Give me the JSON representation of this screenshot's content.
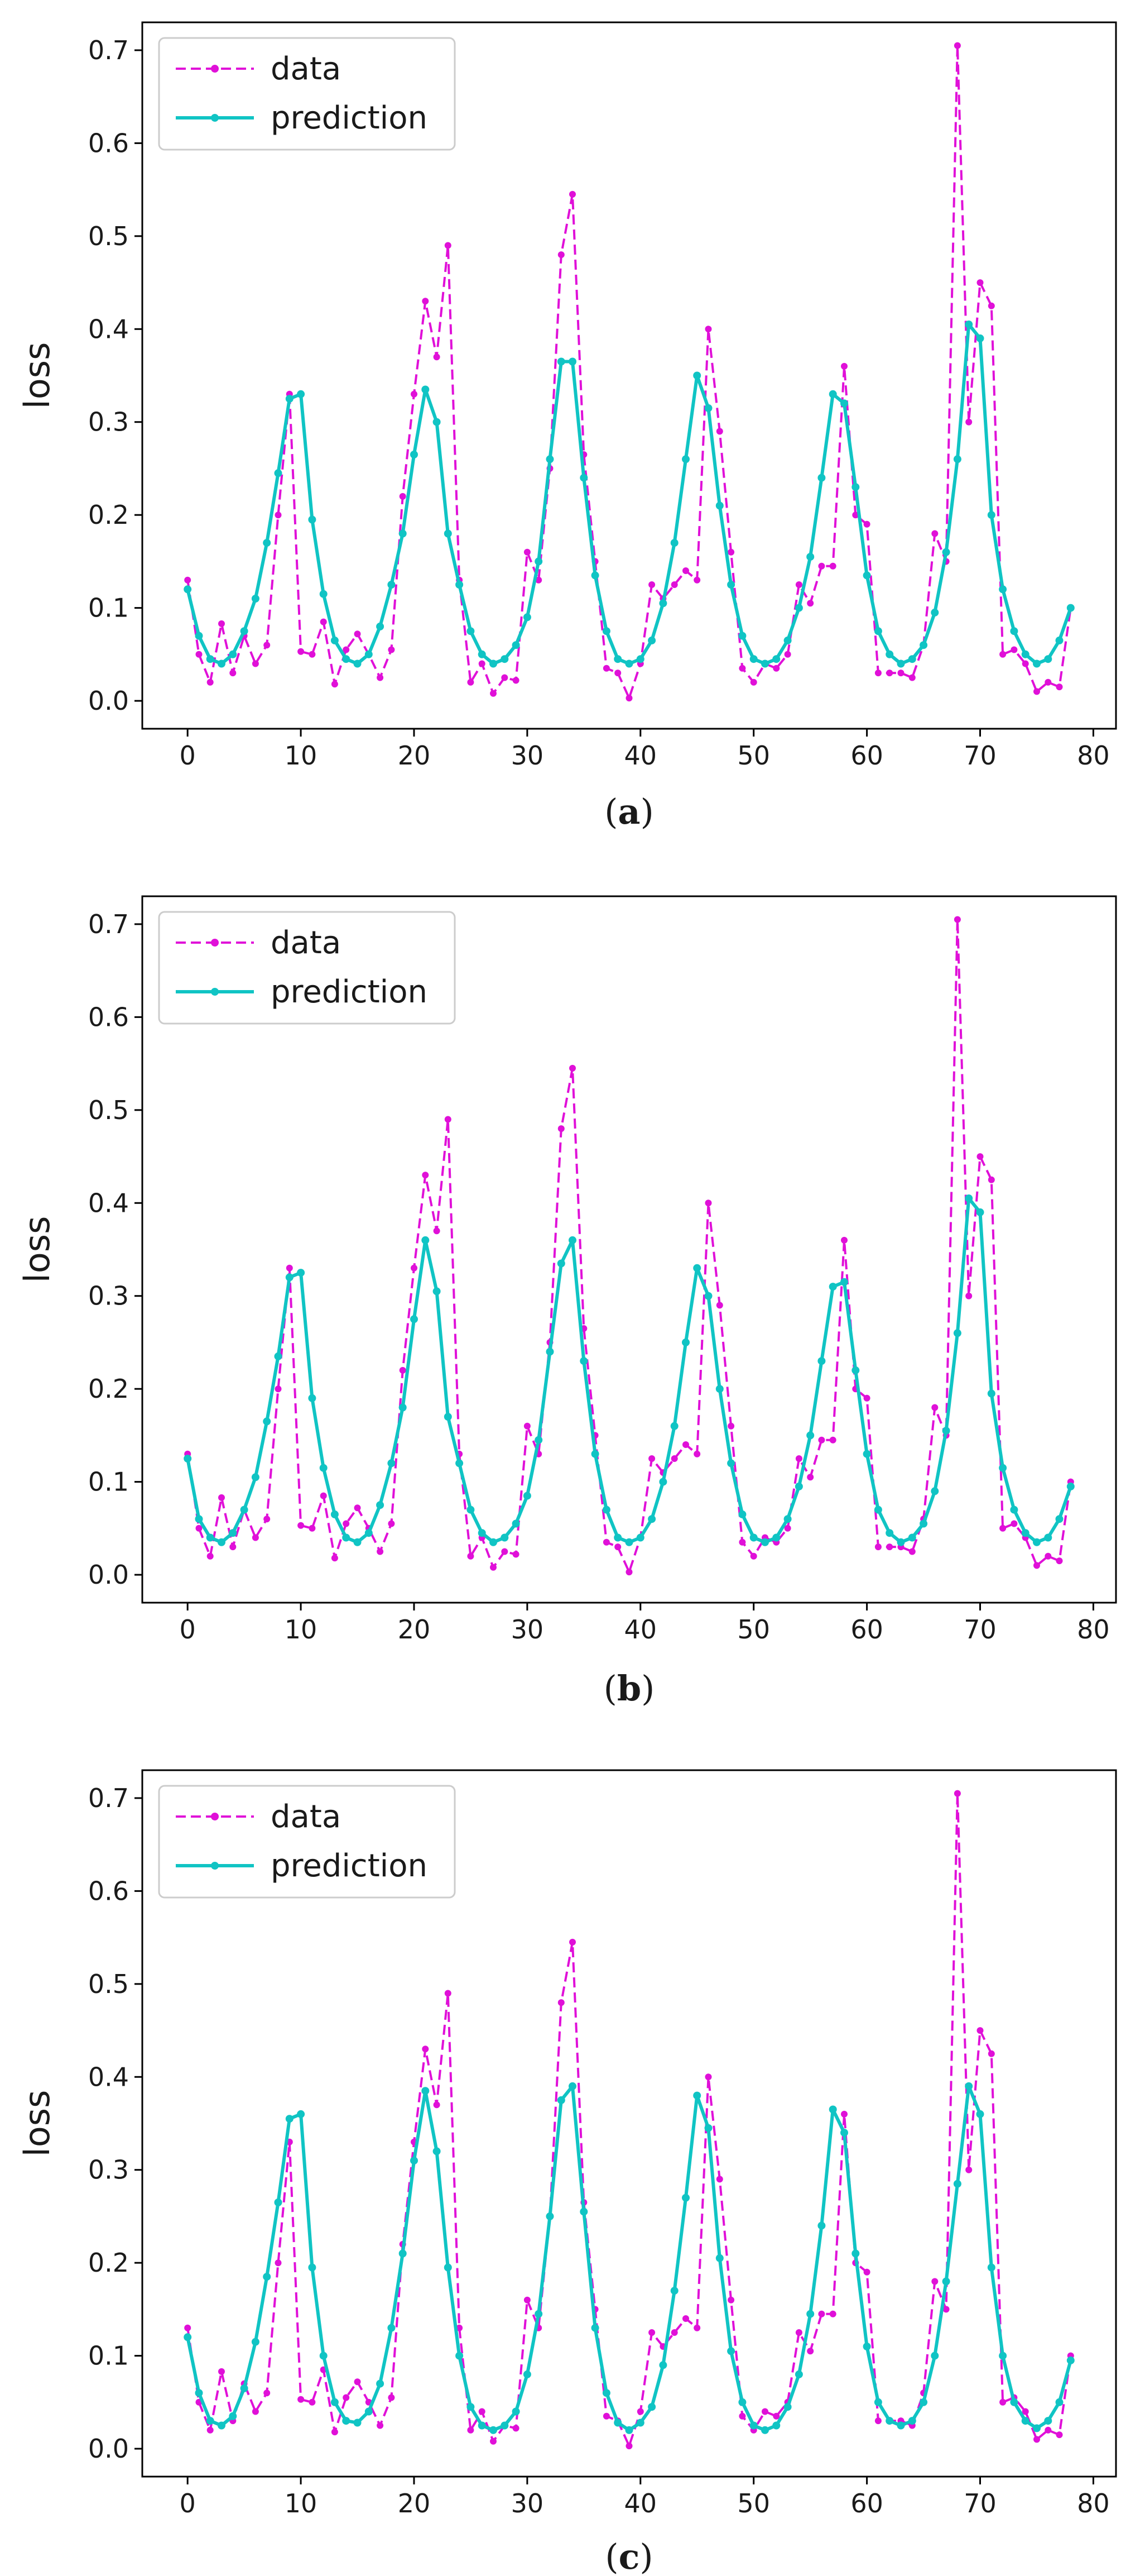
{
  "chart_data": [
    {
      "type": "line",
      "panel": "a",
      "caption": "a",
      "ylabel": "loss",
      "xlabel": "",
      "xlim": [
        -4,
        82
      ],
      "ylim": [
        -0.03,
        0.73
      ],
      "xticks": [
        0,
        10,
        20,
        30,
        40,
        50,
        60,
        70,
        80
      ],
      "yticks": [
        0.0,
        0.1,
        0.2,
        0.3,
        0.4,
        0.5,
        0.6,
        0.7
      ],
      "legend": {
        "placement": "top-left",
        "entries": [
          "data",
          "prediction"
        ]
      },
      "grid": false,
      "series": [
        {
          "name": "data",
          "color": "#e010d8",
          "style": "dashed",
          "values": [
            0.13,
            0.05,
            0.02,
            0.083,
            0.03,
            0.07,
            0.04,
            0.06,
            0.2,
            0.33,
            0.053,
            0.05,
            0.085,
            0.018,
            0.055,
            0.072,
            0.05,
            0.025,
            0.055,
            0.22,
            0.33,
            0.43,
            0.37,
            0.49,
            0.13,
            0.02,
            0.04,
            0.008,
            0.025,
            0.022,
            0.16,
            0.13,
            0.25,
            0.48,
            0.545,
            0.265,
            0.15,
            0.035,
            0.03,
            0.003,
            0.04,
            0.125,
            0.11,
            0.125,
            0.14,
            0.13,
            0.4,
            0.29,
            0.16,
            0.035,
            0.02,
            0.04,
            0.035,
            0.05,
            0.125,
            0.105,
            0.145,
            0.145,
            0.36,
            0.2,
            0.19,
            0.03,
            0.03,
            0.03,
            0.025,
            0.06,
            0.18,
            0.15,
            0.705,
            0.3,
            0.45,
            0.425,
            0.05,
            0.055,
            0.04,
            0.01,
            0.02,
            0.015,
            0.1
          ]
        },
        {
          "name": "prediction",
          "color": "#10c4c4",
          "style": "solid",
          "values": [
            0.12,
            0.07,
            0.045,
            0.04,
            0.05,
            0.075,
            0.11,
            0.17,
            0.245,
            0.325,
            0.33,
            0.195,
            0.115,
            0.065,
            0.045,
            0.04,
            0.05,
            0.08,
            0.125,
            0.18,
            0.265,
            0.335,
            0.3,
            0.18,
            0.125,
            0.075,
            0.05,
            0.04,
            0.045,
            0.06,
            0.09,
            0.15,
            0.26,
            0.365,
            0.365,
            0.24,
            0.135,
            0.075,
            0.045,
            0.04,
            0.045,
            0.065,
            0.105,
            0.17,
            0.26,
            0.35,
            0.315,
            0.21,
            0.125,
            0.07,
            0.045,
            0.04,
            0.045,
            0.065,
            0.1,
            0.155,
            0.24,
            0.33,
            0.32,
            0.23,
            0.135,
            0.075,
            0.05,
            0.04,
            0.045,
            0.06,
            0.095,
            0.16,
            0.26,
            0.405,
            0.39,
            0.2,
            0.12,
            0.075,
            0.05,
            0.04,
            0.045,
            0.065,
            0.1
          ]
        }
      ]
    },
    {
      "type": "line",
      "panel": "b",
      "caption": "b",
      "ylabel": "loss",
      "xlabel": "",
      "xlim": [
        -4,
        82
      ],
      "ylim": [
        -0.03,
        0.73
      ],
      "xticks": [
        0,
        10,
        20,
        30,
        40,
        50,
        60,
        70,
        80
      ],
      "yticks": [
        0.0,
        0.1,
        0.2,
        0.3,
        0.4,
        0.5,
        0.6,
        0.7
      ],
      "legend": {
        "placement": "top-left",
        "entries": [
          "data",
          "prediction"
        ]
      },
      "grid": false,
      "series": [
        {
          "name": "data",
          "color": "#e010d8",
          "style": "dashed",
          "values": [
            0.13,
            0.05,
            0.02,
            0.083,
            0.03,
            0.07,
            0.04,
            0.06,
            0.2,
            0.33,
            0.053,
            0.05,
            0.085,
            0.018,
            0.055,
            0.072,
            0.05,
            0.025,
            0.055,
            0.22,
            0.33,
            0.43,
            0.37,
            0.49,
            0.13,
            0.02,
            0.04,
            0.008,
            0.025,
            0.022,
            0.16,
            0.13,
            0.25,
            0.48,
            0.545,
            0.265,
            0.15,
            0.035,
            0.03,
            0.003,
            0.04,
            0.125,
            0.11,
            0.125,
            0.14,
            0.13,
            0.4,
            0.29,
            0.16,
            0.035,
            0.02,
            0.04,
            0.035,
            0.05,
            0.125,
            0.105,
            0.145,
            0.145,
            0.36,
            0.2,
            0.19,
            0.03,
            0.03,
            0.03,
            0.025,
            0.06,
            0.18,
            0.15,
            0.705,
            0.3,
            0.45,
            0.425,
            0.05,
            0.055,
            0.04,
            0.01,
            0.02,
            0.015,
            0.1
          ]
        },
        {
          "name": "prediction",
          "color": "#10c4c4",
          "style": "solid",
          "values": [
            0.125,
            0.06,
            0.04,
            0.035,
            0.045,
            0.07,
            0.105,
            0.165,
            0.235,
            0.32,
            0.325,
            0.19,
            0.115,
            0.065,
            0.04,
            0.035,
            0.045,
            0.075,
            0.12,
            0.18,
            0.275,
            0.36,
            0.305,
            0.17,
            0.12,
            0.07,
            0.045,
            0.035,
            0.04,
            0.055,
            0.085,
            0.145,
            0.24,
            0.335,
            0.36,
            0.23,
            0.13,
            0.07,
            0.04,
            0.035,
            0.04,
            0.06,
            0.1,
            0.16,
            0.25,
            0.33,
            0.3,
            0.2,
            0.12,
            0.065,
            0.04,
            0.035,
            0.04,
            0.06,
            0.095,
            0.15,
            0.23,
            0.31,
            0.315,
            0.22,
            0.13,
            0.07,
            0.045,
            0.035,
            0.04,
            0.055,
            0.09,
            0.155,
            0.26,
            0.405,
            0.39,
            0.195,
            0.115,
            0.07,
            0.045,
            0.035,
            0.04,
            0.06,
            0.095
          ]
        }
      ]
    },
    {
      "type": "line",
      "panel": "c",
      "caption": "c",
      "ylabel": "loss",
      "xlabel": "",
      "xlim": [
        -4,
        82
      ],
      "ylim": [
        -0.03,
        0.73
      ],
      "xticks": [
        0,
        10,
        20,
        30,
        40,
        50,
        60,
        70,
        80
      ],
      "yticks": [
        0.0,
        0.1,
        0.2,
        0.3,
        0.4,
        0.5,
        0.6,
        0.7
      ],
      "legend": {
        "placement": "top-left",
        "entries": [
          "data",
          "prediction"
        ]
      },
      "grid": false,
      "series": [
        {
          "name": "data",
          "color": "#e010d8",
          "style": "dashed",
          "values": [
            0.13,
            0.05,
            0.02,
            0.083,
            0.03,
            0.07,
            0.04,
            0.06,
            0.2,
            0.33,
            0.053,
            0.05,
            0.085,
            0.018,
            0.055,
            0.072,
            0.05,
            0.025,
            0.055,
            0.22,
            0.33,
            0.43,
            0.37,
            0.49,
            0.13,
            0.02,
            0.04,
            0.008,
            0.025,
            0.022,
            0.16,
            0.13,
            0.25,
            0.48,
            0.545,
            0.265,
            0.15,
            0.035,
            0.03,
            0.003,
            0.04,
            0.125,
            0.11,
            0.125,
            0.14,
            0.13,
            0.4,
            0.29,
            0.16,
            0.035,
            0.02,
            0.04,
            0.035,
            0.05,
            0.125,
            0.105,
            0.145,
            0.145,
            0.36,
            0.2,
            0.19,
            0.03,
            0.03,
            0.03,
            0.025,
            0.06,
            0.18,
            0.15,
            0.705,
            0.3,
            0.45,
            0.425,
            0.05,
            0.055,
            0.04,
            0.01,
            0.02,
            0.015,
            0.1
          ]
        },
        {
          "name": "prediction",
          "color": "#10c4c4",
          "style": "solid",
          "values": [
            0.12,
            0.06,
            0.03,
            0.025,
            0.035,
            0.065,
            0.115,
            0.185,
            0.265,
            0.355,
            0.36,
            0.195,
            0.1,
            0.05,
            0.03,
            0.028,
            0.04,
            0.07,
            0.13,
            0.21,
            0.31,
            0.385,
            0.32,
            0.195,
            0.1,
            0.045,
            0.025,
            0.02,
            0.025,
            0.04,
            0.08,
            0.145,
            0.25,
            0.375,
            0.39,
            0.255,
            0.13,
            0.06,
            0.028,
            0.02,
            0.028,
            0.045,
            0.09,
            0.17,
            0.27,
            0.38,
            0.345,
            0.205,
            0.105,
            0.05,
            0.025,
            0.02,
            0.025,
            0.045,
            0.08,
            0.145,
            0.24,
            0.365,
            0.34,
            0.21,
            0.11,
            0.05,
            0.03,
            0.025,
            0.03,
            0.05,
            0.1,
            0.18,
            0.285,
            0.39,
            0.36,
            0.195,
            0.1,
            0.05,
            0.03,
            0.022,
            0.03,
            0.05,
            0.095
          ]
        }
      ]
    }
  ]
}
